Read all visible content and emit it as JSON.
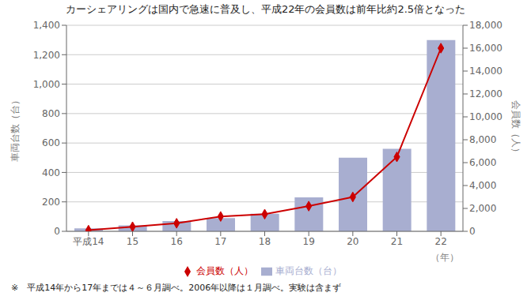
{
  "chart_data": {
    "type": "bar",
    "title": "カーシェアリングは国内で急速に普及し、平成22年の会員数は前年比約2.5倍となった",
    "xlabel": "（年）",
    "ylabel": "車両台数（台）",
    "y2label": "会員数（人）",
    "annotations": [
      "※　平成14年から17年までは４～６月調べ。2006年以降は１月調べ。実験は含まず"
    ],
    "categories": [
      "平成14",
      "15",
      "16",
      "17",
      "18",
      "19",
      "20",
      "21",
      "22"
    ],
    "series": [
      {
        "name": "車両台数（台）",
        "type": "bar",
        "color": "#a8aed0",
        "values": [
          20,
          40,
          70,
          90,
          120,
          230,
          500,
          560,
          1300
        ]
      },
      {
        "name": "会員数（人）",
        "type": "line",
        "axis": "y2",
        "color": "#cc0000",
        "marker": "diamond",
        "values": [
          100,
          400,
          700,
          1300,
          1500,
          2200,
          3000,
          6500,
          16000
        ]
      }
    ],
    "ylim": [
      0,
      1400
    ],
    "yticks": [
      0,
      200,
      400,
      600,
      800,
      {
        "value": 1000,
        "label": "1,000"
      },
      {
        "value": 1200,
        "label": "1,200"
      },
      {
        "value": 1400,
        "label": "1,400"
      }
    ],
    "y2lim": [
      0,
      18000
    ],
    "y2ticks": [
      0,
      {
        "value": 2000,
        "label": "2,000"
      },
      {
        "value": 4000,
        "label": "4,000"
      },
      {
        "value": 6000,
        "label": "6,000"
      },
      {
        "value": 8000,
        "label": "8,000"
      },
      {
        "value": 10000,
        "label": "10,000"
      },
      {
        "value": 12000,
        "label": "12,000"
      },
      {
        "value": 14000,
        "label": "14,000"
      },
      {
        "value": 16000,
        "label": "16,000"
      },
      {
        "value": 18000,
        "label": "18,000"
      }
    ],
    "grid": true,
    "legend": "bottom"
  }
}
